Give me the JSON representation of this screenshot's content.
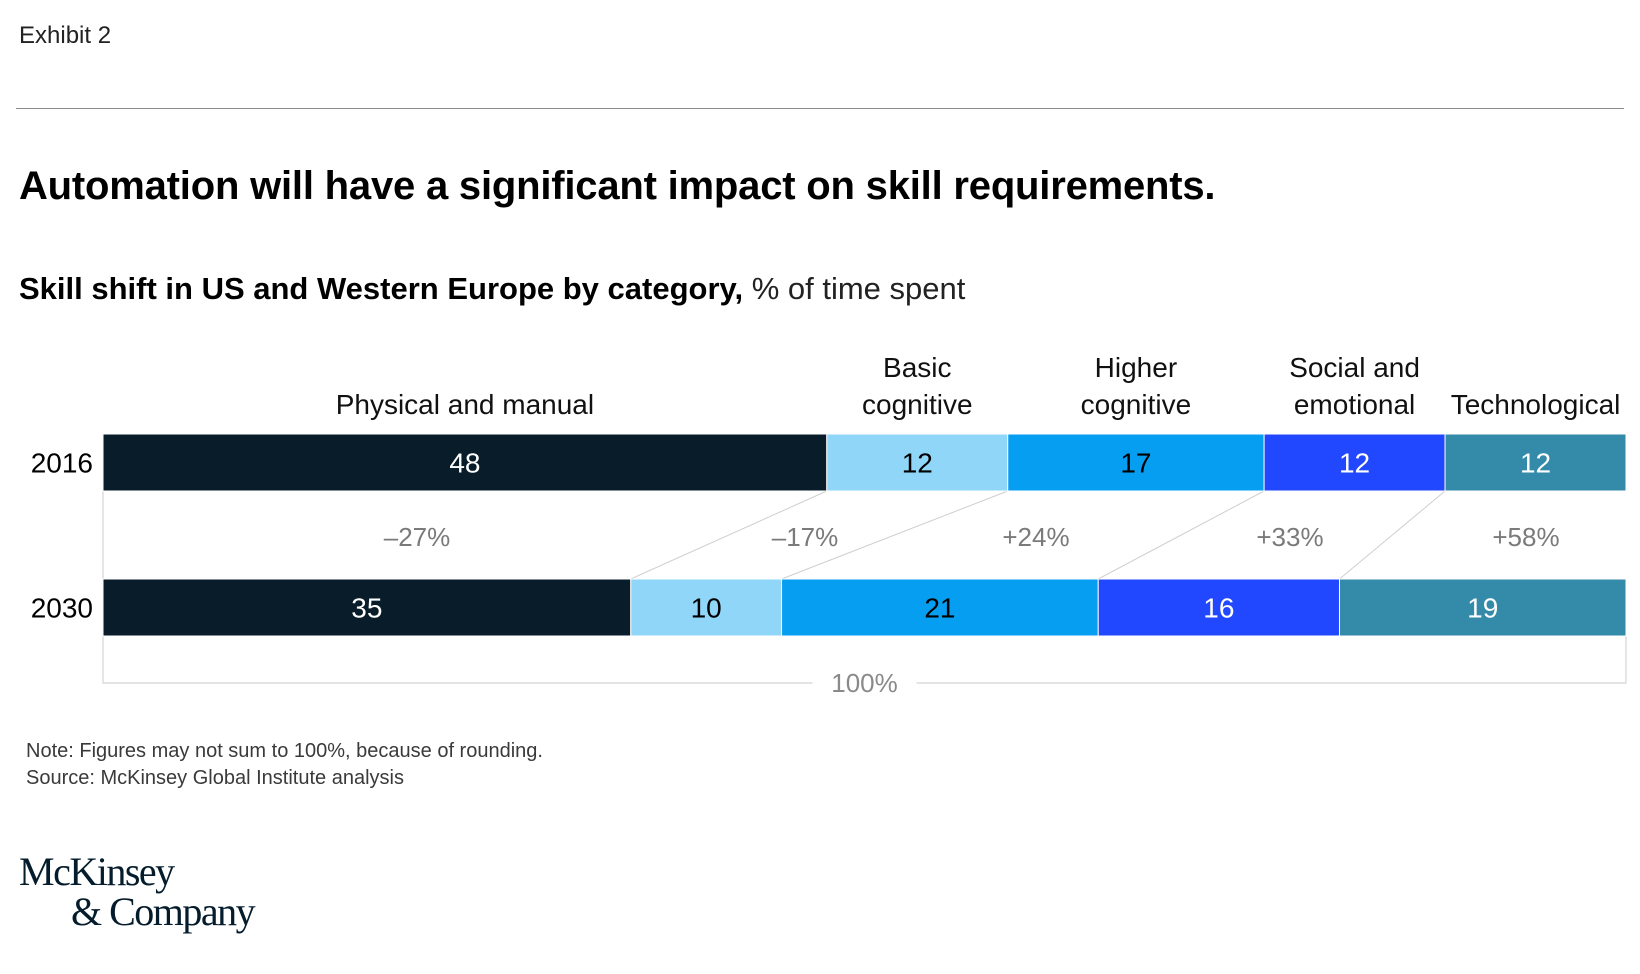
{
  "exhibit": "Exhibit 2",
  "title": "Automation will have a significant impact on skill requirements.",
  "subtitle": {
    "bold": "Skill shift in US and Western Europe by category,",
    "unit": " % of time spent"
  },
  "colors": {
    "Physical and manual": "#081c29",
    "Basic cognitive": "#8fd6f8",
    "Higher cognitive": "#059ef0",
    "Social and emotional": "#2248ff",
    "Technological": "#348aa9",
    "connector": "#cfcfcf",
    "axis_line": "#d4d4d4",
    "change_text": "#7a7a7a"
  },
  "chart_data": {
    "type": "stacked-bar-horizontal",
    "categories": [
      [
        "Physical and manual"
      ],
      [
        "Basic",
        "cognitive"
      ],
      [
        "Higher",
        "cognitive"
      ],
      [
        "Social and",
        "emotional"
      ],
      [
        "Technological"
      ]
    ],
    "years": [
      "2016",
      "2030"
    ],
    "series": [
      {
        "year": "2016",
        "values": [
          48,
          12,
          17,
          12,
          12
        ]
      },
      {
        "year": "2030",
        "values": [
          35,
          10,
          21,
          16,
          19
        ]
      }
    ],
    "changes": [
      "–27%",
      "–17%",
      "+24%",
      "+33%",
      "+58%"
    ],
    "total_label": "100%"
  },
  "notes": {
    "note": "Note: Figures may not sum to 100%, because of rounding.",
    "source": "Source: McKinsey Global Institute analysis"
  },
  "logo": {
    "line1": "McKinsey",
    "line2": "& Company"
  }
}
